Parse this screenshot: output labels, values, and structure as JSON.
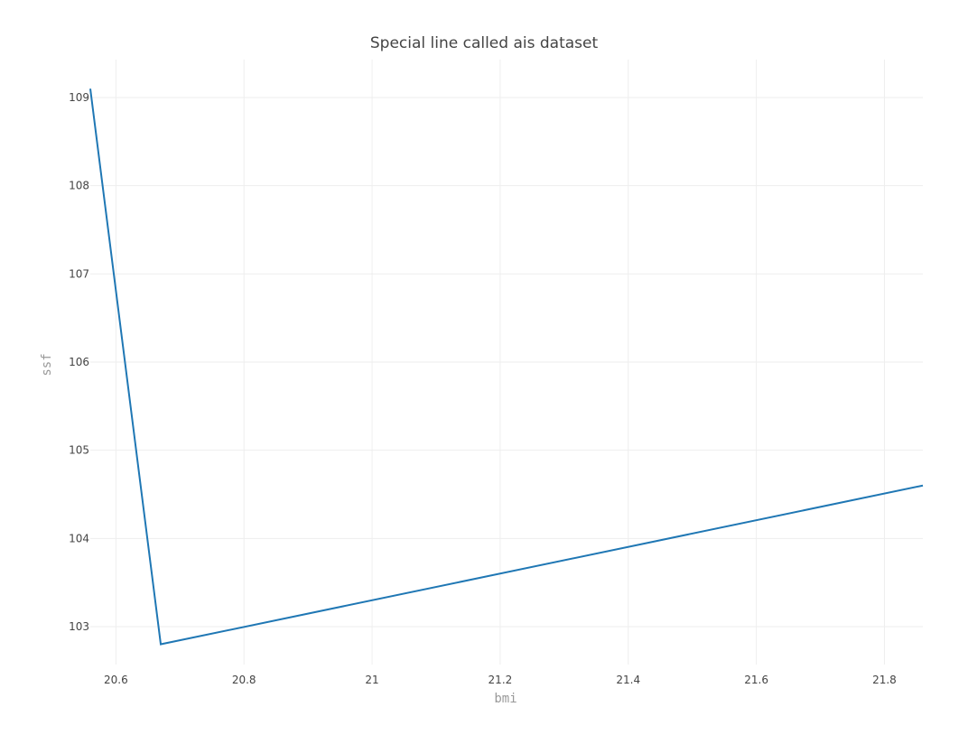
{
  "chart_data": {
    "type": "line",
    "title": "Special line called ais dataset",
    "xlabel": "bmi",
    "ylabel": "ssf",
    "xlim": [
      20.56,
      21.86
    ],
    "ylim": [
      102.57,
      109.43
    ],
    "x_ticks": [
      "20.6",
      "20.8",
      "21",
      "21.2",
      "21.4",
      "21.6",
      "21.8"
    ],
    "y_ticks": [
      "103",
      "104",
      "105",
      "106",
      "107",
      "108",
      "109"
    ],
    "grid": true,
    "series": [
      {
        "x": [
          20.56,
          20.67,
          21.86
        ],
        "y": [
          109.1,
          102.8,
          104.6
        ],
        "color": "#1f77b4"
      }
    ]
  }
}
